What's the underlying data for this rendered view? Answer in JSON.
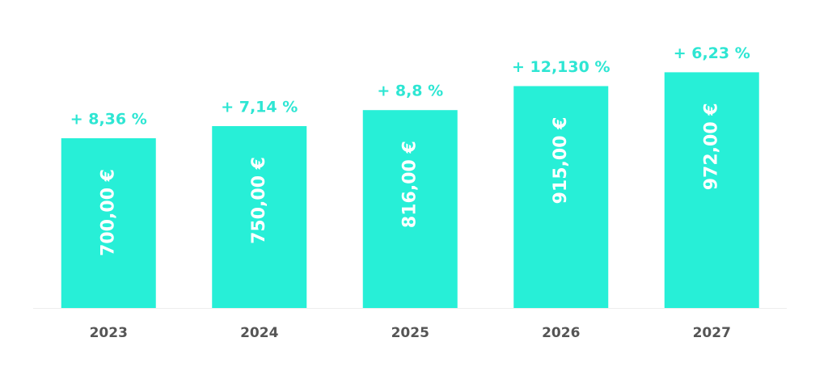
{
  "chart_data": {
    "type": "bar",
    "categories": [
      "2023",
      "2024",
      "2025",
      "2026",
      "2027"
    ],
    "values": [
      700,
      750,
      816,
      915,
      972
    ],
    "value_labels": [
      "700,00 €",
      "750,00 €",
      "816,00 €",
      "915,00 €",
      "972,00 €"
    ],
    "annotations": [
      "+ 8,36 %",
      "+ 7,14 %",
      "+ 8,8 %",
      "+ 12,130 %",
      "+ 6,23 %"
    ],
    "color": "#27efd7",
    "ylim": [
      0,
      1000
    ]
  }
}
